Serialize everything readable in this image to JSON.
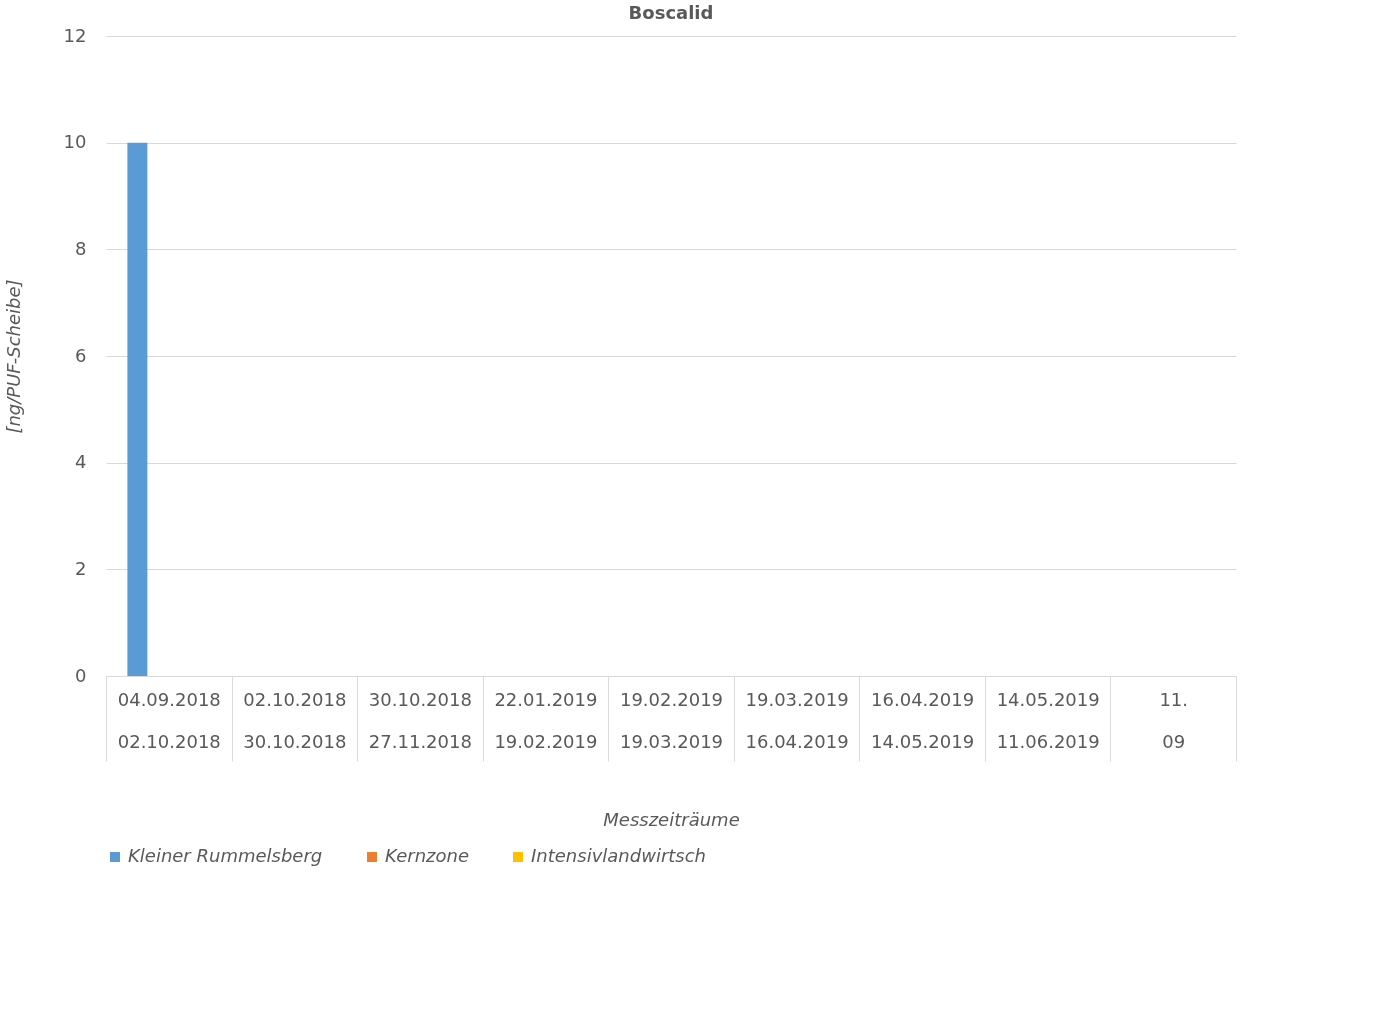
{
  "chart_data": {
    "type": "bar",
    "title": "Boscalid",
    "xlabel": "Messzeiträume",
    "ylabel": "[ng/PUF-Scheibe]",
    "categories": [
      "04.09.2018 02.10.2018",
      "02.10.2018 30.10.2018",
      "30.10.2018 27.11.2018",
      "22.01.2019 19.02.2019",
      "19.02.2019 19.03.2019",
      "19.03.2019 16.04.2019",
      "16.04.2019 14.05.2019",
      "14.05.2019 11.06.2019",
      "11. 09"
    ],
    "series": [
      {
        "name": "Kleiner Rummelsberg",
        "color": "#5b9bd5",
        "values": [
          10,
          0,
          0,
          0,
          0,
          0,
          0,
          0,
          0
        ]
      },
      {
        "name": "Kernzone",
        "color": "#ed7d31",
        "values": [
          0,
          0,
          0,
          0,
          0,
          0,
          0,
          0,
          0
        ]
      },
      {
        "color": "#a5a5a5",
        "values": [
          0,
          0,
          0,
          0,
          0,
          0,
          0,
          0,
          0
        ]
      },
      {
        "name": "Intensivlandwirtsch",
        "color": "#ffc000",
        "values": [
          0,
          0,
          0,
          0,
          0,
          0,
          0,
          0,
          0
        ]
      }
    ],
    "ylim": [
      0,
      12
    ],
    "yticks": [
      0,
      2,
      4,
      6,
      8,
      10,
      12
    ],
    "grid": "y",
    "legend": "bottom"
  }
}
